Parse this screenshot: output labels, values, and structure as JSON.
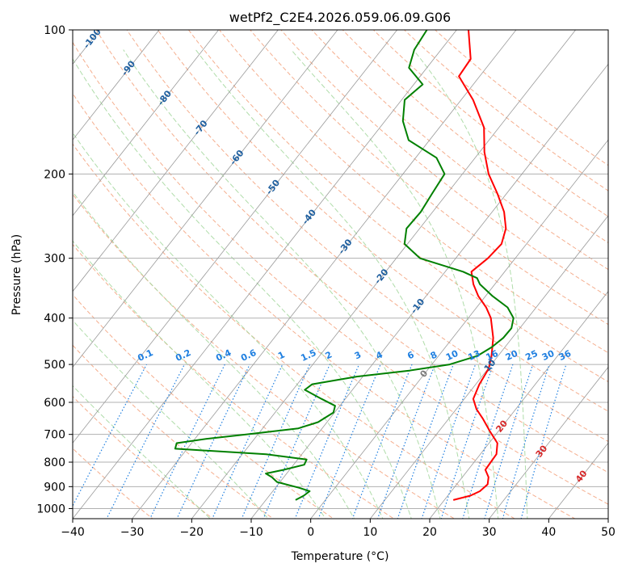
{
  "chart_data": {
    "type": "line",
    "subtype": "skew-t log-p diagram",
    "title": "wetPf2_C2E4.2026.059.06.09.G06",
    "xlabel": "Temperature (°C)",
    "ylabel": "Pressure (hPa)",
    "xlim": [
      -40,
      50
    ],
    "ylim": [
      1050,
      100
    ],
    "x_ticks": [
      -40,
      -30,
      -20,
      -10,
      0,
      10,
      20,
      30,
      40,
      50
    ],
    "x_tick_labels": [
      "−40",
      "−30",
      "−20",
      "−10",
      "0",
      "10",
      "20",
      "30",
      "40",
      "50"
    ],
    "y_ticks": [
      1000,
      900,
      800,
      700,
      600,
      500,
      400,
      300,
      200,
      100
    ],
    "y_tick_labels": [
      "1000",
      "900",
      "800",
      "700",
      "600",
      "500",
      "400",
      "300",
      "200",
      "100"
    ],
    "colors": {
      "temperature": "#ff0000",
      "dewpoint": "#008000",
      "isotherm": "#9a9a9a",
      "isobar": "#b0b0b0",
      "dry_adiabat": "#f4a582",
      "moist_adiabat": "#a6d8a0",
      "mixing_ratio": "#1f7fe0",
      "isotherm_label": "#1f5f9f",
      "hot_isotherm_label": "#d62728",
      "zero_label": "#7a7a7a"
    },
    "series": [
      {
        "name": "Temperature",
        "points": [
          {
            "p": 960,
            "t": 21.5
          },
          {
            "p": 940,
            "t": 23.8
          },
          {
            "p": 920,
            "t": 24.8
          },
          {
            "p": 890,
            "t": 25.2
          },
          {
            "p": 860,
            "t": 24.4
          },
          {
            "p": 830,
            "t": 22.9
          },
          {
            "p": 800,
            "t": 22.8
          },
          {
            "p": 770,
            "t": 22.7
          },
          {
            "p": 730,
            "t": 21.4
          },
          {
            "p": 690,
            "t": 18.6
          },
          {
            "p": 650,
            "t": 15.8
          },
          {
            "p": 620,
            "t": 13.4
          },
          {
            "p": 590,
            "t": 11.5
          },
          {
            "p": 550,
            "t": 10.6
          },
          {
            "p": 510,
            "t": 10.1
          },
          {
            "p": 480,
            "t": 8.9
          },
          {
            "p": 440,
            "t": 6.8
          },
          {
            "p": 400,
            "t": 3.8
          },
          {
            "p": 380,
            "t": 1.6
          },
          {
            "p": 360,
            "t": -1.2
          },
          {
            "p": 340,
            "t": -3.6
          },
          {
            "p": 320,
            "t": -5.6
          },
          {
            "p": 300,
            "t": -4.6
          },
          {
            "p": 280,
            "t": -4.2
          },
          {
            "p": 260,
            "t": -5.5
          },
          {
            "p": 240,
            "t": -8.0
          },
          {
            "p": 220,
            "t": -11.5
          },
          {
            "p": 200,
            "t": -15.6
          },
          {
            "p": 180,
            "t": -19.2
          },
          {
            "p": 160,
            "t": -22.5
          },
          {
            "p": 140,
            "t": -28.0
          },
          {
            "p": 125,
            "t": -33.5
          },
          {
            "p": 115,
            "t": -33.8
          },
          {
            "p": 100,
            "t": -38.0
          }
        ]
      },
      {
        "name": "Dewpoint",
        "points": [
          {
            "p": 960,
            "t": -5.0
          },
          {
            "p": 940,
            "t": -4.2
          },
          {
            "p": 920,
            "t": -3.8
          },
          {
            "p": 905,
            "t": -6.0
          },
          {
            "p": 880,
            "t": -10.5
          },
          {
            "p": 860,
            "t": -12.0
          },
          {
            "p": 845,
            "t": -13.5
          },
          {
            "p": 830,
            "t": -11.0
          },
          {
            "p": 810,
            "t": -8.2
          },
          {
            "p": 790,
            "t": -8.5
          },
          {
            "p": 770,
            "t": -16.0
          },
          {
            "p": 750,
            "t": -32.0
          },
          {
            "p": 730,
            "t": -32.5
          },
          {
            "p": 715,
            "t": -28.0
          },
          {
            "p": 700,
            "t": -22.0
          },
          {
            "p": 680,
            "t": -14.0
          },
          {
            "p": 660,
            "t": -11.5
          },
          {
            "p": 630,
            "t": -10.2
          },
          {
            "p": 610,
            "t": -10.8
          },
          {
            "p": 590,
            "t": -14.0
          },
          {
            "p": 565,
            "t": -18.0
          },
          {
            "p": 550,
            "t": -17.5
          },
          {
            "p": 530,
            "t": -11.0
          },
          {
            "p": 515,
            "t": -3.0
          },
          {
            "p": 500,
            "t": 3.0
          },
          {
            "p": 480,
            "t": 6.5
          },
          {
            "p": 460,
            "t": 7.8
          },
          {
            "p": 440,
            "t": 8.5
          },
          {
            "p": 420,
            "t": 8.6
          },
          {
            "p": 400,
            "t": 7.6
          },
          {
            "p": 380,
            "t": 5.2
          },
          {
            "p": 360,
            "t": 1.2
          },
          {
            "p": 340,
            "t": -2.5
          },
          {
            "p": 330,
            "t": -3.8
          },
          {
            "p": 320,
            "t": -7.0
          },
          {
            "p": 300,
            "t": -16.0
          },
          {
            "p": 280,
            "t": -20.5
          },
          {
            "p": 260,
            "t": -22.2
          },
          {
            "p": 240,
            "t": -22.0
          },
          {
            "p": 220,
            "t": -22.5
          },
          {
            "p": 200,
            "t": -23.0
          },
          {
            "p": 185,
            "t": -26.5
          },
          {
            "p": 170,
            "t": -33.5
          },
          {
            "p": 155,
            "t": -37.0
          },
          {
            "p": 140,
            "t": -39.5
          },
          {
            "p": 130,
            "t": -38.5
          },
          {
            "p": 120,
            "t": -43.0
          },
          {
            "p": 110,
            "t": -44.5
          },
          {
            "p": 100,
            "t": -45.0
          }
        ]
      }
    ],
    "isotherm_labels": [
      {
        "t": -100,
        "text": "-100"
      },
      {
        "t": -90,
        "text": "-90"
      },
      {
        "t": -80,
        "text": "-80"
      },
      {
        "t": -70,
        "text": "-70"
      },
      {
        "t": -60,
        "text": "-60"
      },
      {
        "t": -50,
        "text": "-50"
      },
      {
        "t": -40,
        "text": "-40"
      },
      {
        "t": -30,
        "text": "-30"
      },
      {
        "t": -20,
        "text": "-20"
      },
      {
        "t": -10,
        "text": "-10"
      },
      {
        "t": 0,
        "text": "0"
      },
      {
        "t": 10,
        "text": "10"
      },
      {
        "t": 20,
        "text": "20"
      },
      {
        "t": 30,
        "text": "30"
      },
      {
        "t": 40,
        "text": "40"
      }
    ],
    "mixing_ratio_lines": [
      0.1,
      0.2,
      0.4,
      0.6,
      1,
      1.5,
      2,
      3,
      4,
      6,
      8,
      10,
      13,
      16,
      20,
      25,
      30,
      36
    ],
    "mixing_ratio_labels": [
      "0.1",
      "0.2",
      "0.4",
      "0.6",
      "1",
      "1.5",
      "2",
      "3",
      "4",
      "6",
      "8",
      "10",
      "13",
      "16",
      "20",
      "25",
      "30",
      "36"
    ],
    "dry_adiabats_theta_c": [
      -30,
      -20,
      -10,
      0,
      10,
      20,
      30,
      40,
      50,
      60,
      70,
      80,
      90,
      100,
      110,
      120,
      130,
      140,
      150,
      160,
      170
    ],
    "moist_adiabats_start_c": [
      -20,
      -10,
      0,
      5,
      10,
      15,
      20,
      25,
      30,
      35
    ]
  }
}
